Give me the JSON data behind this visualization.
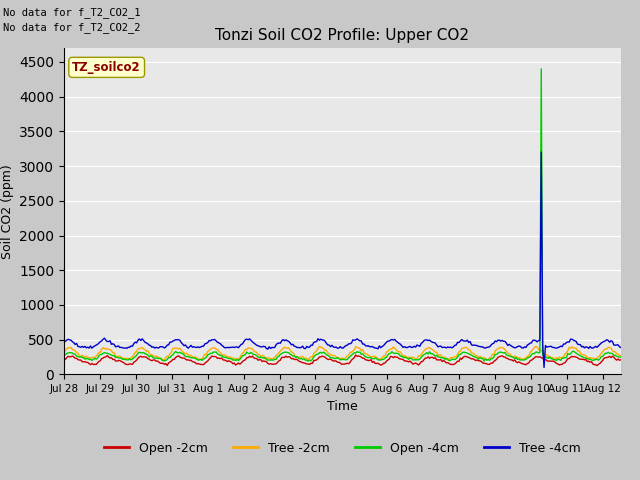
{
  "title": "Tonzi Soil CO2 Profile: Upper CO2",
  "ylabel": "Soil CO2 (ppm)",
  "xlabel": "Time",
  "annotation_lines": [
    "No data for f_T2_CO2_1",
    "No data for f_T2_CO2_2"
  ],
  "legend_label": "TZ_soilco2",
  "ylim": [
    0,
    4700
  ],
  "yticks": [
    0,
    500,
    1000,
    1500,
    2000,
    2500,
    3000,
    3500,
    4000,
    4500
  ],
  "fig_bg_color": "#c8c8c8",
  "plot_bg_color": "#e8e8e8",
  "series_colors": {
    "open_2cm": "#cc0000",
    "tree_2cm": "#ffaa00",
    "open_4cm": "#00cc00",
    "tree_4cm": "#0000cc"
  },
  "legend_entries": [
    "Open -2cm",
    "Tree -2cm",
    "Open -4cm",
    "Tree -4cm"
  ],
  "n_points": 400,
  "spike_index_green": 342,
  "spike_value_green": 4400,
  "spike_index_blue": 342,
  "spike_value_blue": 3200,
  "spike_min_blue": 100
}
